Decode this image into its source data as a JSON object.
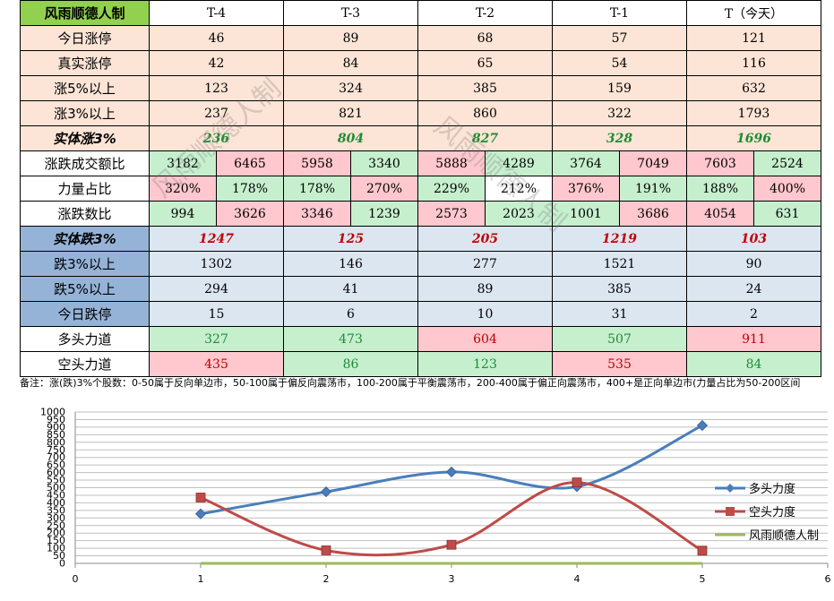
{
  "table": {
    "corner": "风雨顺德人制",
    "headers": [
      "T-4",
      "T-3",
      "T-2",
      "T-1",
      "T（今天）"
    ],
    "rows_up": [
      {
        "label": "今日涨停",
        "values": [
          "46",
          "89",
          "68",
          "57",
          "121"
        ]
      },
      {
        "label": "真实涨停",
        "values": [
          "42",
          "84",
          "65",
          "54",
          "116"
        ]
      },
      {
        "label": "涨5%以上",
        "values": [
          "123",
          "324",
          "385",
          "159",
          "632"
        ]
      },
      {
        "label": "涨3%以上",
        "values": [
          "237",
          "821",
          "860",
          "322",
          "1793"
        ]
      }
    ],
    "shiti_up": {
      "label": "实体涨3%",
      "values": [
        "236",
        "804",
        "827",
        "328",
        "1696"
      ]
    },
    "pairs": [
      {
        "label": "涨跌成交额比",
        "values": [
          "3182",
          "6465",
          "5958",
          "3340",
          "5888",
          "4289",
          "3764",
          "7049",
          "7603",
          "2524"
        ],
        "colors": [
          "green",
          "pink",
          "pink",
          "green",
          "pink",
          "green",
          "green",
          "pink",
          "pink",
          "green"
        ]
      },
      {
        "label": "力量占比",
        "values": [
          "320%",
          "178%",
          "178%",
          "270%",
          "229%",
          "212%",
          "376%",
          "191%",
          "188%",
          "400%"
        ],
        "colors": [
          "pink",
          "green",
          "green",
          "pink",
          "green",
          "white",
          "pink",
          "green",
          "green",
          "pink"
        ]
      },
      {
        "label": "涨跌数比",
        "values": [
          "994",
          "3626",
          "3346",
          "1239",
          "2573",
          "2023",
          "1001",
          "3686",
          "4054",
          "631"
        ],
        "colors": [
          "green",
          "pink",
          "pink",
          "green",
          "pink",
          "green",
          "green",
          "pink",
          "pink",
          "green"
        ]
      }
    ],
    "shiti_down": {
      "label": "实体跌3%",
      "values": [
        "1247",
        "125",
        "205",
        "1219",
        "103"
      ]
    },
    "rows_down": [
      {
        "label": "跌3%以上",
        "values": [
          "1302",
          "146",
          "277",
          "1521",
          "90"
        ]
      },
      {
        "label": "跌5%以上",
        "values": [
          "294",
          "41",
          "89",
          "385",
          "24"
        ]
      },
      {
        "label": "今日跌停",
        "values": [
          "15",
          "6",
          "10",
          "31",
          "2"
        ]
      }
    ],
    "force_rows": [
      {
        "label": "多头力道",
        "values": [
          "327",
          "473",
          "604",
          "507",
          "911"
        ],
        "colors": [
          "green",
          "green",
          "pink",
          "green",
          "pink"
        ]
      },
      {
        "label": "空头力道",
        "values": [
          "435",
          "86",
          "123",
          "535",
          "84"
        ],
        "colors": [
          "pink",
          "green",
          "green",
          "pink",
          "green"
        ]
      }
    ]
  },
  "note": "备注：涨(跌)3%个股数：0-50属于反向单边市，50-100属于偏反向震荡市，100-200属于平衡震荡市，200-400属于偏正向震荡市，400+是正向单边市(力量占比为50-200区间",
  "watermark": [
    "风雨顺德人制",
    "风雨顺德人制"
  ],
  "chart_data": {
    "type": "line",
    "x": [
      1,
      2,
      3,
      4,
      5
    ],
    "series": [
      {
        "name": "多头力度",
        "values": [
          327,
          473,
          604,
          507,
          911
        ],
        "color": "#4a7ebb",
        "marker": "diamond"
      },
      {
        "name": "空头力度",
        "values": [
          435,
          86,
          123,
          535,
          84
        ],
        "color": "#be4b48",
        "marker": "square"
      },
      {
        "name": "风雨顺德人制",
        "values": [
          0,
          0,
          0,
          0,
          0
        ],
        "color": "#9bbb59",
        "marker": "none"
      }
    ],
    "xlim": [
      0,
      6
    ],
    "ylim": [
      0,
      1000
    ],
    "xticks": [
      "0",
      "1",
      "2",
      "3",
      "4",
      "5",
      "6"
    ],
    "yticks": [
      "0",
      "50",
      "100",
      "150",
      "200",
      "250",
      "300",
      "350",
      "400",
      "450",
      "500",
      "550",
      "600",
      "650",
      "700",
      "750",
      "800",
      "850",
      "900",
      "950",
      "1000"
    ],
    "grid": true,
    "legend": "right"
  }
}
